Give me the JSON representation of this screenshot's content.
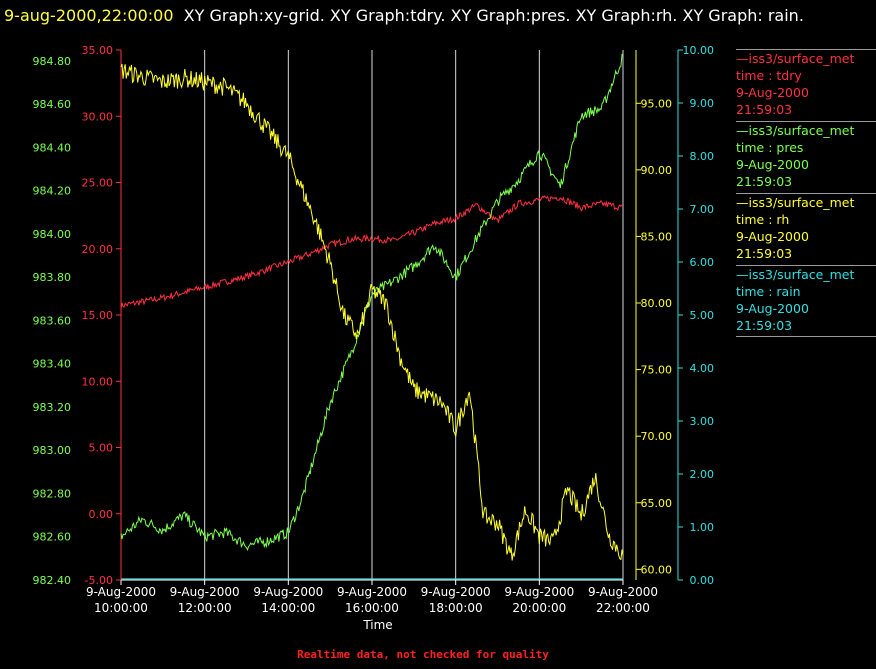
{
  "title": {
    "timestamp": "9-aug-2000,22:00:00",
    "graphs": "XY Graph:xy-grid.  XY Graph:tdry.  XY Graph:pres.  XY Graph:rh.  XY Graph: rain."
  },
  "footer": {
    "note": "Realtime data, not checked for quality"
  },
  "legend": [
    {
      "source": "—iss3/surface_met",
      "field": "time : tdry",
      "date": "9-Aug-2000",
      "time": "21:59:03",
      "color": "#ff3040"
    },
    {
      "source": "—iss3/surface_met",
      "field": "time : pres",
      "date": "9-Aug-2000",
      "time": "21:59:03",
      "color": "#7cff50"
    },
    {
      "source": "—iss3/surface_met",
      "field": "time : rh",
      "date": "9-Aug-2000",
      "time": "21:59:03",
      "color": "#ffff30"
    },
    {
      "source": "—iss3/surface_met",
      "field": "time : rain",
      "date": "9-Aug-2000",
      "time": "21:59:03",
      "color": "#30e0e0"
    }
  ],
  "chart_data": {
    "type": "line",
    "xlabel": "Time",
    "x_ticks": [
      {
        "date": "9-Aug-2000",
        "time": "10:00:00"
      },
      {
        "date": "9-Aug-2000",
        "time": "12:00:00"
      },
      {
        "date": "9-Aug-2000",
        "time": "14:00:00"
      },
      {
        "date": "9-Aug-2000",
        "time": "16:00:00"
      },
      {
        "date": "9-Aug-2000",
        "time": "18:00:00"
      },
      {
        "date": "9-Aug-2000",
        "time": "20:00:00"
      },
      {
        "date": "9-Aug-2000",
        "time": "22:00:00"
      }
    ],
    "x_range": [
      "2000-08-09 10:00",
      "2000-08-09 22:00"
    ],
    "grid": "vertical",
    "axes": {
      "tdry": {
        "ticks": [
          "-5.00",
          "0.00",
          "5.00",
          "10.00",
          "15.00",
          "20.00",
          "25.00",
          "30.00",
          "35.00"
        ],
        "ylim": [
          -5,
          35
        ],
        "color": "#ff3040",
        "side": "left"
      },
      "pres": {
        "ticks": [
          "982.40",
          "982.60",
          "982.80",
          "983.00",
          "983.20",
          "983.40",
          "983.60",
          "983.80",
          "984.00",
          "984.20",
          "984.40",
          "984.60",
          "984.80"
        ],
        "ylim": [
          982.4,
          984.85
        ],
        "color": "#7cff50",
        "side": "left"
      },
      "rh": {
        "ticks": [
          "60.00",
          "65.00",
          "70.00",
          "75.00",
          "80.00",
          "85.00",
          "90.00",
          "95.00"
        ],
        "ylim": [
          59.2,
          99.0
        ],
        "color": "#ffff30",
        "side": "right"
      },
      "rain": {
        "ticks": [
          "0.00",
          "1.00",
          "2.00",
          "3.00",
          "4.00",
          "5.00",
          "6.00",
          "7.00",
          "8.00",
          "9.00",
          "10.00"
        ],
        "ylim": [
          0,
          10.0
        ],
        "color": "#30e0e0",
        "side": "right"
      }
    },
    "series": [
      {
        "name": "tdry",
        "color": "#ff3040",
        "x": [
          "10:00",
          "11:00",
          "12:00",
          "13:00",
          "14:00",
          "14:30",
          "15:00",
          "15:30",
          "16:00",
          "16:30",
          "17:00",
          "17:30",
          "18:00",
          "18:30",
          "19:00",
          "19:30",
          "20:00",
          "20:30",
          "21:00",
          "21:30",
          "22:00"
        ],
        "values": [
          15.7,
          16.3,
          17.1,
          17.9,
          19.0,
          19.6,
          20.3,
          20.7,
          20.8,
          20.6,
          21.2,
          21.9,
          22.3,
          23.3,
          22.1,
          23.4,
          23.7,
          23.9,
          23.1,
          23.4,
          23.1
        ]
      },
      {
        "name": "pres",
        "color": "#7cff50",
        "x": [
          "10:00",
          "10:30",
          "11:00",
          "11:30",
          "12:00",
          "12:30",
          "13:00",
          "13:30",
          "14:00",
          "14:20",
          "14:40",
          "15:00",
          "15:30",
          "16:00",
          "16:30",
          "17:00",
          "17:30",
          "18:00",
          "18:30",
          "19:00",
          "19:30",
          "20:00",
          "20:30",
          "21:00",
          "21:30",
          "22:00"
        ],
        "values": [
          982.6,
          982.68,
          982.63,
          982.7,
          982.6,
          982.62,
          982.56,
          982.58,
          982.62,
          982.78,
          983.0,
          983.22,
          983.45,
          983.72,
          983.78,
          983.85,
          983.95,
          983.8,
          983.98,
          984.15,
          984.25,
          984.38,
          984.22,
          984.55,
          984.58,
          984.82
        ]
      },
      {
        "name": "rh",
        "color": "#ffff30",
        "x": [
          "10:00",
          "10:30",
          "11:00",
          "11:30",
          "12:00",
          "12:30",
          "13:00",
          "13:30",
          "14:00",
          "14:20",
          "14:40",
          "15:00",
          "15:20",
          "15:40",
          "16:00",
          "16:20",
          "16:40",
          "17:00",
          "17:20",
          "17:40",
          "18:00",
          "18:20",
          "18:40",
          "19:00",
          "19:20",
          "19:40",
          "20:00",
          "20:20",
          "20:40",
          "21:00",
          "21:20",
          "21:40",
          "22:00"
        ],
        "values": [
          97.5,
          97.0,
          96.6,
          96.9,
          96.6,
          96.2,
          95.0,
          93.0,
          91.0,
          88.5,
          86.0,
          83.0,
          79.0,
          77.5,
          81.0,
          80.0,
          76.0,
          73.5,
          73.0,
          72.5,
          70.5,
          73.5,
          64.0,
          63.5,
          61.0,
          64.5,
          62.5,
          62.0,
          66.0,
          64.0,
          67.0,
          62.5,
          61.0
        ]
      },
      {
        "name": "rain",
        "color": "#30e0e0",
        "x": [
          "10:00",
          "11:00",
          "12:00",
          "14:00",
          "16:00",
          "18:00",
          "20:00",
          "22:00"
        ],
        "values": [
          0.02,
          0.02,
          0.02,
          0.02,
          0.02,
          0.02,
          0.02,
          0.02
        ]
      }
    ]
  }
}
